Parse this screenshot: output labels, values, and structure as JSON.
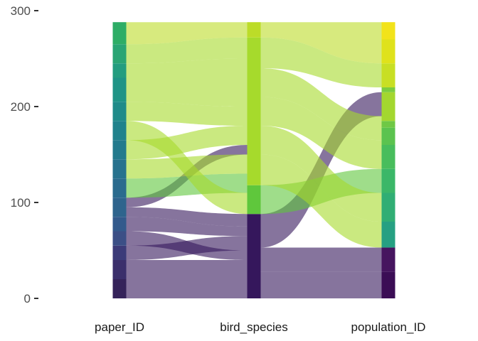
{
  "chart_data": {
    "type": "alluvial",
    "title": "",
    "xlabel": "",
    "ylabel": "",
    "ylim": [
      0,
      300
    ],
    "yticks": [
      0,
      100,
      200,
      300
    ],
    "axes": [
      "paper_ID",
      "bird_species",
      "population_ID"
    ],
    "grid": false,
    "legend": "none",
    "strata": {
      "paper_ID": [
        {
          "from": 0,
          "to": 20,
          "color": "#35235a"
        },
        {
          "from": 20,
          "to": 40,
          "color": "#3b2f6b"
        },
        {
          "from": 40,
          "to": 55,
          "color": "#3c3b79"
        },
        {
          "from": 55,
          "to": 70,
          "color": "#3b4f86"
        },
        {
          "from": 70,
          "to": 85,
          "color": "#335a8c"
        },
        {
          "from": 85,
          "to": 105,
          "color": "#2e648d"
        },
        {
          "from": 105,
          "to": 125,
          "color": "#2a6b8e"
        },
        {
          "from": 125,
          "to": 145,
          "color": "#27728e"
        },
        {
          "from": 145,
          "to": 165,
          "color": "#237a8d"
        },
        {
          "from": 165,
          "to": 185,
          "color": "#20828c"
        },
        {
          "from": 185,
          "to": 205,
          "color": "#1f8b89"
        },
        {
          "from": 205,
          "to": 230,
          "color": "#1f9486"
        },
        {
          "from": 230,
          "to": 245,
          "color": "#239d7f"
        },
        {
          "from": 245,
          "to": 265,
          "color": "#2aa574"
        },
        {
          "from": 265,
          "to": 288,
          "color": "#2ead66"
        }
      ],
      "bird_species": [
        {
          "from": 0,
          "to": 88,
          "color": "#35175c"
        },
        {
          "from": 88,
          "to": 118,
          "color": "#5fc73c"
        },
        {
          "from": 118,
          "to": 272,
          "color": "#a6da2c"
        },
        {
          "from": 272,
          "to": 288,
          "color": "#bcdc28"
        }
      ],
      "population_ID": [
        {
          "from": 0,
          "to": 28,
          "color": "#3b0d55"
        },
        {
          "from": 28,
          "to": 53,
          "color": "#46155f"
        },
        {
          "from": 53,
          "to": 80,
          "color": "#26a082"
        },
        {
          "from": 80,
          "to": 110,
          "color": "#30ae74"
        },
        {
          "from": 110,
          "to": 135,
          "color": "#3bb768"
        },
        {
          "from": 135,
          "to": 160,
          "color": "#48bd5c"
        },
        {
          "from": 160,
          "to": 178,
          "color": "#5bc34f"
        },
        {
          "from": 178,
          "to": 185,
          "color": "#6fc845"
        },
        {
          "from": 185,
          "to": 215,
          "color": "#a3d72f"
        },
        {
          "from": 215,
          "to": 220,
          "color": "#7ccd3f"
        },
        {
          "from": 220,
          "to": 245,
          "color": "#c8df24"
        },
        {
          "from": 245,
          "to": 270,
          "color": "#dfe21b"
        },
        {
          "from": 270,
          "to": 288,
          "color": "#f2e31a"
        }
      ]
    },
    "flows_left": [
      {
        "from": [
          0,
          20
        ],
        "to": [
          0,
          20
        ],
        "color": "#35175c"
      },
      {
        "from": [
          20,
          40
        ],
        "to": [
          20,
          40
        ],
        "color": "#35175c"
      },
      {
        "from": [
          40,
          55
        ],
        "to": [
          50,
          65
        ],
        "color": "#35175c"
      },
      {
        "from": [
          55,
          70
        ],
        "to": [
          40,
          50
        ],
        "color": "#35175c"
      },
      {
        "from": [
          70,
          85
        ],
        "to": [
          65,
          75
        ],
        "color": "#35175c"
      },
      {
        "from": [
          85,
          95
        ],
        "to": [
          75,
          88
        ],
        "color": "#35175c"
      },
      {
        "from": [
          95,
          105
        ],
        "to": [
          150,
          160
        ],
        "color": "#35175c"
      },
      {
        "from": [
          105,
          125
        ],
        "to": [
          110,
          130
        ],
        "color": "#5fc73c"
      },
      {
        "from": [
          125,
          145
        ],
        "to": [
          130,
          150
        ],
        "color": "#a6da2c"
      },
      {
        "from": [
          145,
          165
        ],
        "to": [
          160,
          180
        ],
        "color": "#a6da2c"
      },
      {
        "from": [
          165,
          185
        ],
        "to": [
          88,
          110
        ],
        "color": "#a6da2c"
      },
      {
        "from": [
          185,
          205
        ],
        "to": [
          180,
          200
        ],
        "color": "#a6da2c"
      },
      {
        "from": [
          205,
          230
        ],
        "to": [
          200,
          230
        ],
        "color": "#a6da2c"
      },
      {
        "from": [
          230,
          245
        ],
        "to": [
          230,
          250
        ],
        "color": "#a6da2c"
      },
      {
        "from": [
          245,
          265
        ],
        "to": [
          250,
          272
        ],
        "color": "#a6da2c"
      },
      {
        "from": [
          265,
          288
        ],
        "to": [
          272,
          288
        ],
        "color": "#bcdc28"
      }
    ],
    "flows_right": [
      {
        "from": [
          0,
          28
        ],
        "to": [
          0,
          28
        ],
        "color": "#35175c"
      },
      {
        "from": [
          28,
          53
        ],
        "to": [
          28,
          53
        ],
        "color": "#35175c"
      },
      {
        "from": [
          53,
          88
        ],
        "to": [
          190,
          215
        ],
        "color": "#35175c"
      },
      {
        "from": [
          88,
          118
        ],
        "to": [
          110,
          135
        ],
        "color": "#5fc73c"
      },
      {
        "from": [
          118,
          150
        ],
        "to": [
          53,
          80
        ],
        "color": "#a6da2c"
      },
      {
        "from": [
          150,
          180
        ],
        "to": [
          80,
          110
        ],
        "color": "#a6da2c"
      },
      {
        "from": [
          180,
          210
        ],
        "to": [
          135,
          165
        ],
        "color": "#a6da2c"
      },
      {
        "from": [
          210,
          240
        ],
        "to": [
          165,
          190
        ],
        "color": "#a6da2c"
      },
      {
        "from": [
          240,
          272
        ],
        "to": [
          220,
          245
        ],
        "color": "#a6da2c"
      },
      {
        "from": [
          272,
          288
        ],
        "to": [
          245,
          288
        ],
        "color": "#bcdc28"
      }
    ]
  }
}
